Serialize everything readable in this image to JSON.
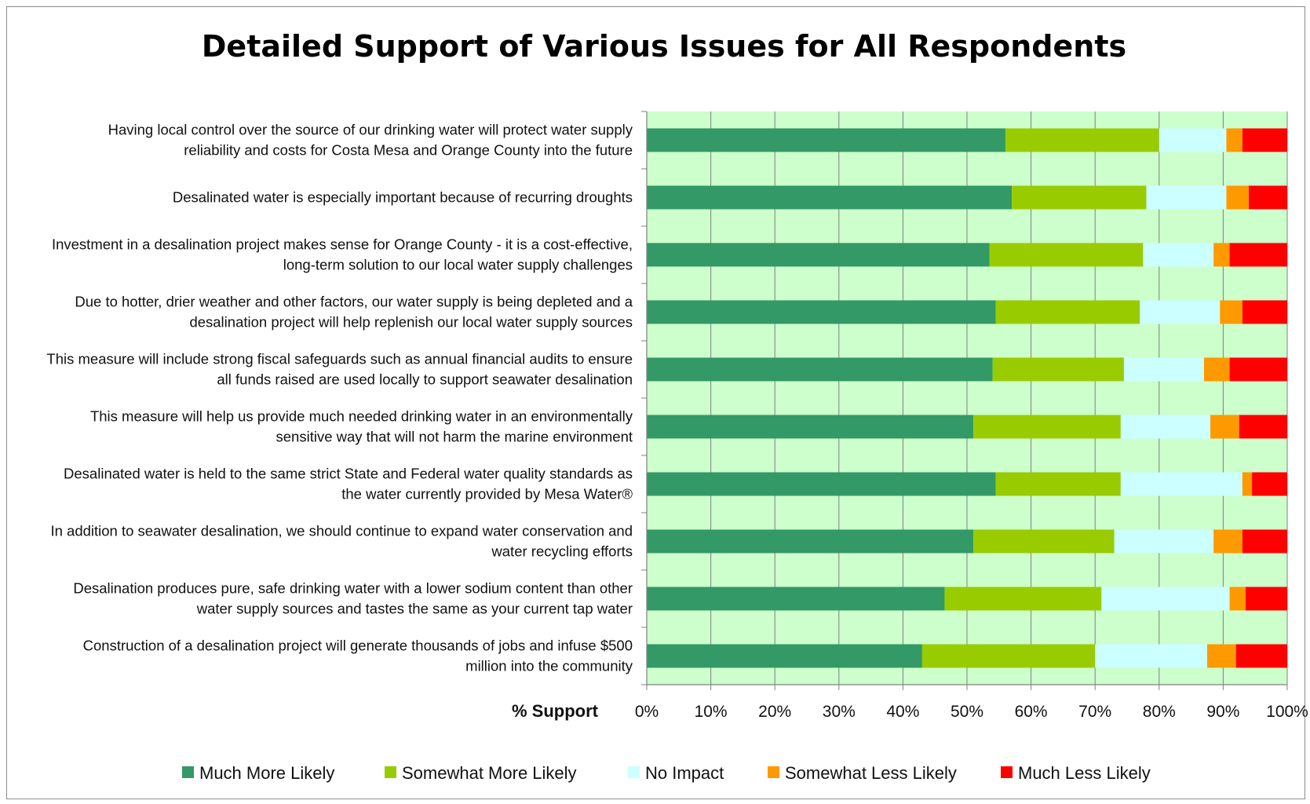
{
  "chart_data": {
    "type": "bar",
    "orientation": "horizontal-stacked-100",
    "title": "Detailed Support of Various Issues for All Respondents",
    "xlabel": "% Support",
    "xlim": [
      0,
      100
    ],
    "x_ticks": [
      "0%",
      "10%",
      "20%",
      "30%",
      "40%",
      "50%",
      "60%",
      "70%",
      "80%",
      "90%",
      "100%"
    ],
    "grid": true,
    "legend_position": "bottom",
    "categories": [
      [
        "Having local control over the source of our drinking water will protect water supply",
        "reliability and costs for Costa Mesa and Orange County into the future"
      ],
      [
        "Desalinated water is especially important because of recurring droughts"
      ],
      [
        "Investment in a desalination project makes sense for Orange County - it is a cost-effective,",
        "long-term solution to our local water supply challenges"
      ],
      [
        "Due to hotter, drier weather and other factors, our water supply is being depleted and a",
        "desalination project will help replenish our local water supply sources"
      ],
      [
        "This measure will include strong fiscal safeguards such as annual financial audits to ensure",
        "all funds raised are used locally to support seawater desalination"
      ],
      [
        "This measure will help us provide much needed drinking water in an environmentally",
        "sensitive way that will not harm the marine environment"
      ],
      [
        "Desalinated water is held to the same strict State and Federal water quality standards as",
        "the water currently provided by Mesa Water®"
      ],
      [
        "In addition to seawater desalination, we should continue to expand water conservation and",
        "water recycling efforts"
      ],
      [
        "Desalination produces pure, safe drinking water with a lower sodium content than other",
        "water supply sources and tastes the same as your current tap water"
      ],
      [
        "Construction of a desalination project will generate thousands of jobs and infuse $500",
        "million into the community"
      ]
    ],
    "series": [
      {
        "name": "Much More Likely",
        "color": "#339966",
        "values": [
          56,
          57,
          53.5,
          54.5,
          54,
          51,
          54.5,
          51,
          46.5,
          43
        ]
      },
      {
        "name": "Somewhat More Likely",
        "color": "#99cc00",
        "values": [
          24,
          21,
          24,
          22.5,
          20.5,
          23,
          19.5,
          22,
          24.5,
          27
        ]
      },
      {
        "name": "No Impact",
        "color": "#ccffff",
        "values": [
          10.5,
          12.5,
          11,
          12.5,
          12.5,
          14,
          19,
          15.5,
          20,
          17.5
        ]
      },
      {
        "name": "Somewhat Less Likely",
        "color": "#ff9900",
        "values": [
          2.5,
          3.5,
          2.5,
          3.5,
          4,
          4.5,
          1.5,
          4.5,
          2.5,
          4.5
        ]
      },
      {
        "name": "Much Less Likely",
        "color": "#ff0000",
        "values": [
          7,
          6,
          9,
          7,
          9,
          7.5,
          5.5,
          7,
          6.5,
          8
        ]
      }
    ],
    "colors": {
      "plot_background": "#ccffcc",
      "gridline": "#808080"
    }
  }
}
